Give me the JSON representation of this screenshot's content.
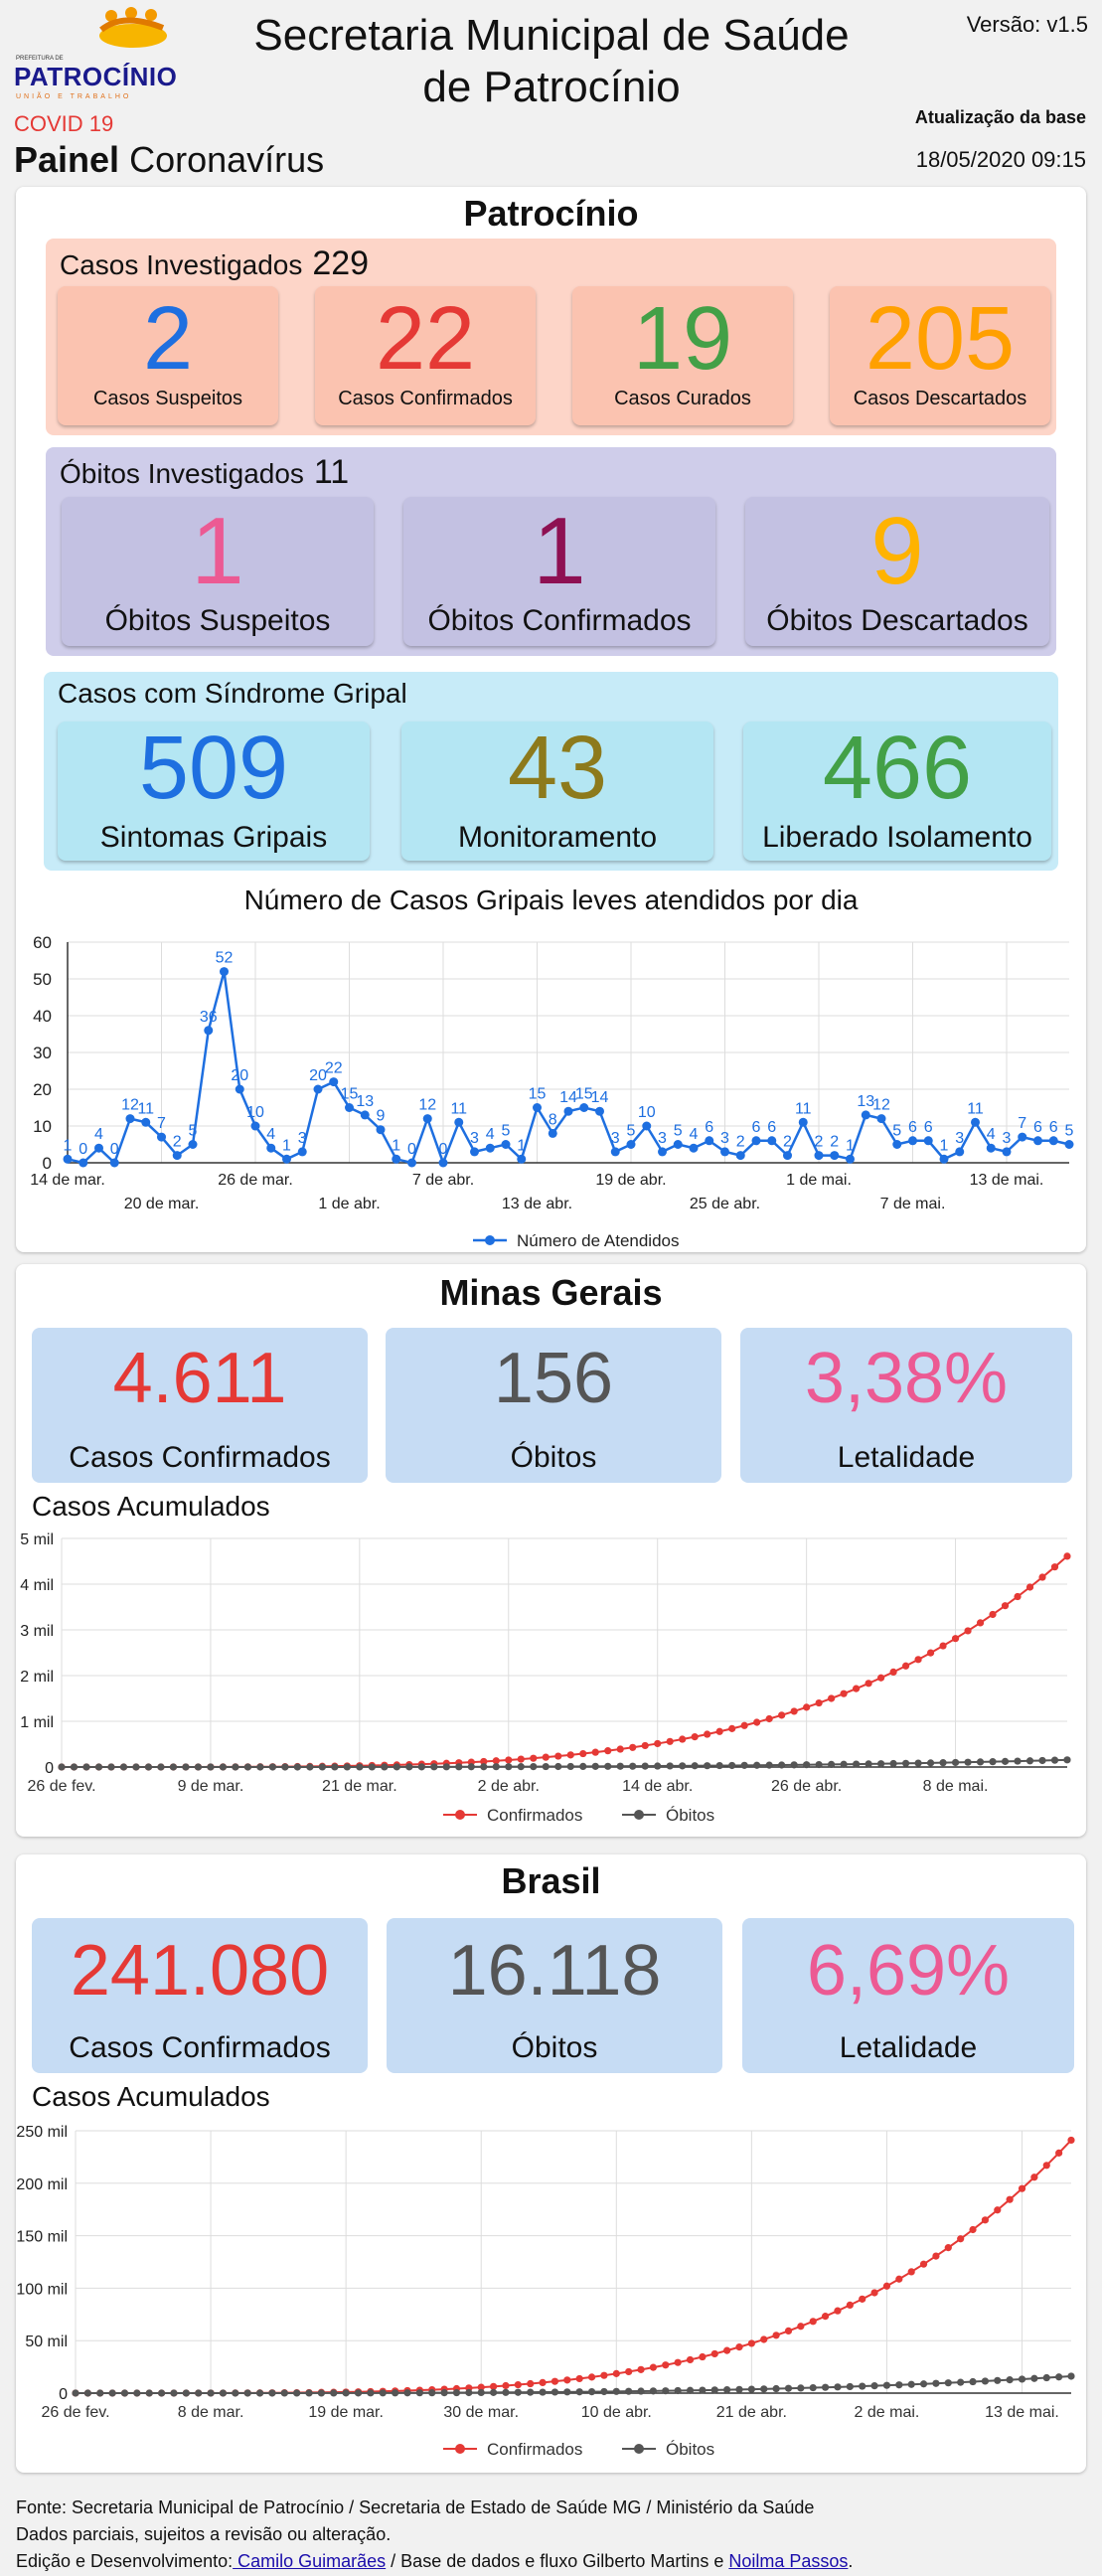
{
  "header": {
    "logo_pref": "PREFEITURA DE",
    "logo_brand": "PATROCÍNIO",
    "logo_tag": "UNIÃO E TRABALHO",
    "title_line1": "Secretaria Municipal de Saúde",
    "title_line2": "de Patrocínio",
    "version": "Versão: v1.5",
    "covid": "COVID 19",
    "painel_bold": "Painel",
    "painel_rest": " Coronavírus",
    "update_label": "Atualização da base",
    "update_time": "18/05/2020 09:15"
  },
  "patrocinio": {
    "title": "Patrocínio",
    "casos": {
      "label": "Casos Investigados",
      "total": "229",
      "items": [
        {
          "value": "2",
          "label": "Casos Suspeitos",
          "color": "#1e6fe0"
        },
        {
          "value": "22",
          "label": "Casos Confirmados",
          "color": "#e53935"
        },
        {
          "value": "19",
          "label": "Casos Curados",
          "color": "#43a047"
        },
        {
          "value": "205",
          "label": "Casos Descartados",
          "color": "#ffa000"
        }
      ]
    },
    "obitos": {
      "label": "Óbitos Investigados",
      "total": "11",
      "items": [
        {
          "value": "1",
          "label": "Óbitos Suspeitos",
          "color": "#ec5a93"
        },
        {
          "value": "1",
          "label": "Óbitos Confirmados",
          "color": "#8e1052"
        },
        {
          "value": "9",
          "label": "Óbitos Descartados",
          "color": "#ffb300"
        }
      ]
    },
    "gripal": {
      "label": "Casos com Síndrome Gripal",
      "items": [
        {
          "value": "509",
          "label": "Sintomas Gripais",
          "color": "#1e6fe0"
        },
        {
          "value": "43",
          "label": "Monitoramento",
          "color": "#8d7a1c"
        },
        {
          "value": "466",
          "label": "Liberado Isolamento",
          "color": "#43a047"
        }
      ]
    },
    "chart_title": "Número de Casos Gripais leves atendidos por dia"
  },
  "minas": {
    "title": "Minas Gerais",
    "items": [
      {
        "value": "4.611",
        "label": "Casos Confirmados",
        "color": "#e53935"
      },
      {
        "value": "156",
        "label": "Óbitos",
        "color": "#555555"
      },
      {
        "value": "3,38%",
        "label": "Letalidade",
        "color": "#ec5a93"
      }
    ],
    "sub": "Casos Acumulados"
  },
  "brasil": {
    "title": "Brasil",
    "items": [
      {
        "value": "241.080",
        "label": "Casos Confirmados",
        "color": "#e53935"
      },
      {
        "value": "16.118",
        "label": "Óbitos",
        "color": "#555555"
      },
      {
        "value": "6,69%",
        "label": "Letalidade",
        "color": "#ec5a93"
      }
    ],
    "sub": "Casos Acumulados"
  },
  "footer": {
    "line1": "Fonte: Secretaria Municipal de Patrocínio / Secretaria de Estado de Saúde MG / Ministério da Saúde",
    "line2": "Dados parciais, sujeitos a revisão ou alteração.",
    "line3_pre": "Edição e Desenvolvimento:",
    "author1": " Camilo Guimarães",
    "line3_mid": " / Base de dados e fluxo Gilberto Martins e ",
    "author2": "Noilma Passos",
    "line3_end": "."
  },
  "chart_data": [
    {
      "type": "line",
      "title": "Número de Casos Gripais leves atendidos por dia",
      "x_start": "14 de mar.",
      "x_ticks": [
        "14 de mar.",
        "20 de mar.",
        "26 de mar.",
        "1 de abr.",
        "7 de abr.",
        "13 de abr.",
        "19 de abr.",
        "25 de abr.",
        "1 de mai.",
        "7 de mai.",
        "13 de mai."
      ],
      "ylim": [
        0,
        60
      ],
      "y_ticks": [
        0,
        10,
        20,
        30,
        40,
        50,
        60
      ],
      "legend": "bottom",
      "series": [
        {
          "name": "Número de Atendidos",
          "color": "#1e6fe0",
          "values": [
            1,
            0,
            4,
            0,
            12,
            11,
            7,
            2,
            5,
            36,
            52,
            20,
            10,
            4,
            1,
            3,
            20,
            22,
            15,
            13,
            9,
            1,
            0,
            12,
            0,
            11,
            3,
            4,
            5,
            1,
            15,
            8,
            14,
            15,
            14,
            3,
            5,
            10,
            3,
            5,
            4,
            6,
            3,
            2,
            6,
            6,
            2,
            11,
            2,
            2,
            1,
            13,
            12,
            5,
            6,
            6,
            1,
            3,
            11,
            4,
            3,
            7,
            6,
            6,
            5
          ]
        }
      ]
    },
    {
      "type": "line",
      "x_ticks": [
        "26 de fev.",
        "9 de mar.",
        "21 de mar.",
        "2 de abr.",
        "14 de abr.",
        "26 de abr.",
        "8 de mai."
      ],
      "ylim": [
        0,
        5000
      ],
      "y_ticks": [
        "0",
        "1 mil",
        "2 mil",
        "3 mil",
        "4 mil",
        "5 mil"
      ],
      "legend": "bottom",
      "days": 82,
      "series": [
        {
          "name": "Confirmados",
          "color": "#e53935",
          "end_value": 4611
        },
        {
          "name": "Óbitos",
          "color": "#555555",
          "end_value": 156
        }
      ]
    },
    {
      "type": "line",
      "x_ticks": [
        "26 de fev.",
        "8 de mar.",
        "19 de mar.",
        "30 de mar.",
        "10 de abr.",
        "21 de abr.",
        "2 de mai.",
        "13 de mai."
      ],
      "ylim": [
        0,
        250000
      ],
      "y_ticks": [
        "0",
        "50 mil",
        "100 mil",
        "150 mil",
        "200 mil",
        "250 mil"
      ],
      "legend": "bottom",
      "days": 82,
      "series": [
        {
          "name": "Confirmados",
          "color": "#e53935",
          "end_value": 241080
        },
        {
          "name": "Óbitos",
          "color": "#555555",
          "end_value": 16118
        }
      ]
    }
  ]
}
